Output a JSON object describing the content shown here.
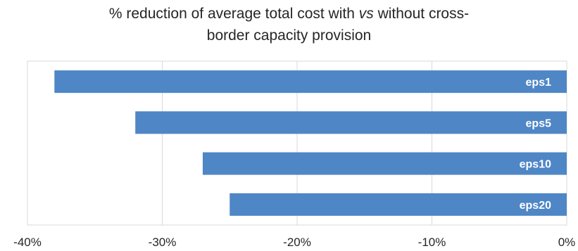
{
  "chart_data": {
    "type": "bar",
    "orientation": "horizontal",
    "title": {
      "line1_prefix": "% reduction of average total cost with ",
      "line1_italic": "vs",
      "line1_suffix": " without cross-",
      "line2": "border capacity provision"
    },
    "categories": [
      "eps1",
      "eps5",
      "eps10",
      "eps20"
    ],
    "values": [
      -38,
      -32,
      -27,
      -25
    ],
    "xlim": [
      -40,
      0
    ],
    "xticks": [
      "-40%",
      "-30%",
      "-20%",
      "-10%",
      "0%"
    ],
    "xtick_values": [
      -40,
      -30,
      -20,
      -10,
      0
    ],
    "grid": true,
    "legend": "none",
    "bar_color": "#4F86C6"
  }
}
